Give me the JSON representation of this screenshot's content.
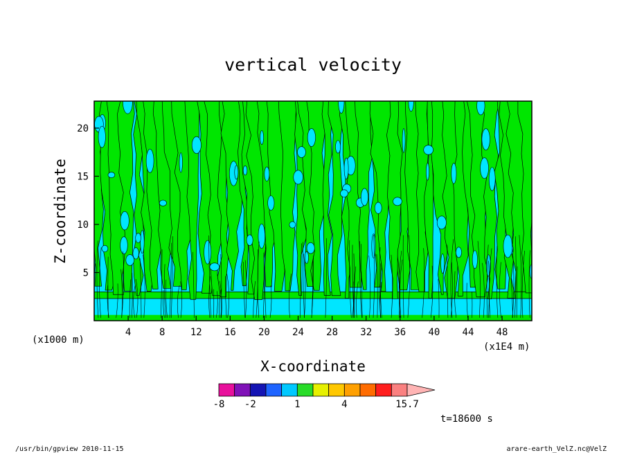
{
  "chart_data": {
    "type": "heatmap",
    "title": "vertical velocity",
    "xlabel": "X-coordinate",
    "ylabel": "Z-coordinate",
    "x_unit_left": "(x1000 m)",
    "x_unit_right": "(x1E4 m)",
    "xlim": [
      0,
      51.5
    ],
    "ylim": [
      0,
      22.8
    ],
    "x_ticks": [
      4,
      8,
      12,
      16,
      20,
      24,
      28,
      32,
      36,
      40,
      44,
      48
    ],
    "y_ticks": [
      5,
      10,
      15,
      20
    ],
    "colorbar": {
      "colors": [
        "#e8109c",
        "#8012b8",
        "#1414b4",
        "#1e64ff",
        "#00c8ff",
        "#28dc28",
        "#e6f000",
        "#ffc800",
        "#ffa000",
        "#ff6c00",
        "#ff1e1e",
        "#fa8080",
        "#ffb4b4"
      ],
      "tick_labels": [
        "-8",
        "-2",
        "1",
        "4",
        "15.7"
      ],
      "tick_values": [
        -8,
        -2,
        1,
        4,
        15.7
      ]
    },
    "field_colors": {
      "updraft_weak": "#00e600",
      "downdraft_weak": "#00e6ff"
    },
    "time_label": "t=18600 s"
  },
  "footer": {
    "left": "/usr/bin/gpview  2010-11-15",
    "right": "arare-earth_VelZ.nc@VelZ"
  }
}
